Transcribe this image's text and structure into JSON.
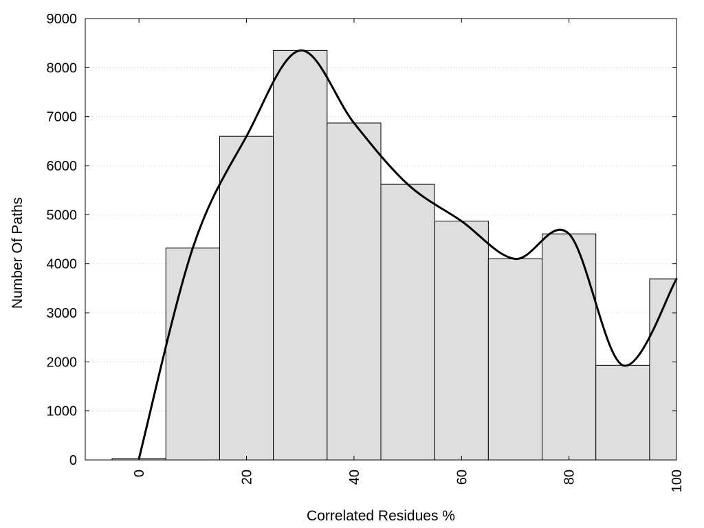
{
  "chart_data": {
    "type": "bar",
    "title": "",
    "xlabel": "Correlated Residues %",
    "ylabel": "Number Of Paths",
    "xlim": [
      -10,
      100
    ],
    "ylim": [
      0,
      9000
    ],
    "x_ticks": [
      0,
      20,
      40,
      60,
      80,
      100
    ],
    "x_tick_labels": [
      "0",
      "20",
      "40",
      "60",
      "80",
      "100"
    ],
    "y_ticks": [
      0,
      1000,
      2000,
      3000,
      4000,
      5000,
      6000,
      7000,
      8000,
      9000
    ],
    "y_tick_labels": [
      "0",
      "1000",
      "2000",
      "3000",
      "4000",
      "5000",
      "6000",
      "7000",
      "8000",
      "9000"
    ],
    "grid": "horizontal dotted",
    "bin_width": 10,
    "categories": [
      0,
      10,
      20,
      30,
      40,
      50,
      60,
      70,
      80,
      90,
      100
    ],
    "values": [
      30,
      4320,
      6600,
      8350,
      6870,
      5620,
      4870,
      4100,
      4610,
      1930,
      3690
    ],
    "curve": {
      "x": [
        0,
        10,
        20,
        30,
        40,
        50,
        60,
        70,
        80,
        90,
        100
      ],
      "y": [
        30,
        4320,
        6600,
        8350,
        6870,
        5620,
        4870,
        4100,
        4610,
        1930,
        3690
      ]
    },
    "colors": {
      "bar_fill": "#dedede",
      "bar_stroke": "#000000",
      "curve": "#000000"
    }
  }
}
